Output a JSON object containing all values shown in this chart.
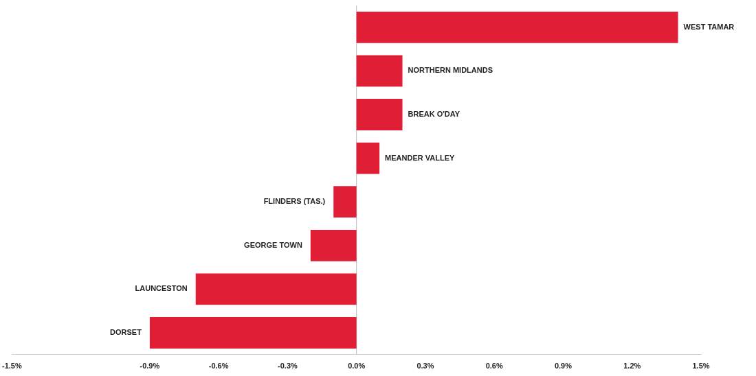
{
  "chart_data": {
    "type": "bar",
    "orientation": "horizontal",
    "categories": [
      "WEST TAMAR",
      "NORTHERN MIDLANDS",
      "BREAK O'DAY",
      "MEANDER VALLEY",
      "FLINDERS (TAS.)",
      "GEORGE TOWN",
      "LAUNCESTON",
      "DORSET"
    ],
    "values": [
      1.4,
      0.2,
      0.2,
      0.1,
      -0.1,
      -0.2,
      -0.7,
      -0.9
    ],
    "color": "#e01f36",
    "xlim": [
      -1.5,
      1.5
    ],
    "xticks": [
      {
        "value": -1.5,
        "label": "-1.5%"
      },
      {
        "value": -0.9,
        "label": "-0.9%"
      },
      {
        "value": -0.6,
        "label": "-0.6%"
      },
      {
        "value": -0.3,
        "label": "-0.3%"
      },
      {
        "value": 0,
        "label": "0.0%"
      },
      {
        "value": 0.3,
        "label": "0.3%"
      },
      {
        "value": 0.6,
        "label": "0.6%"
      },
      {
        "value": 0.9,
        "label": "0.9%"
      },
      {
        "value": 1.2,
        "label": "1.2%"
      },
      {
        "value": 1.5,
        "label": "1.5%"
      }
    ],
    "ref_lines": [
      {
        "axis": "x",
        "value": 0,
        "color": "#bbbbbb"
      }
    ],
    "grid": false,
    "legend": false
  }
}
